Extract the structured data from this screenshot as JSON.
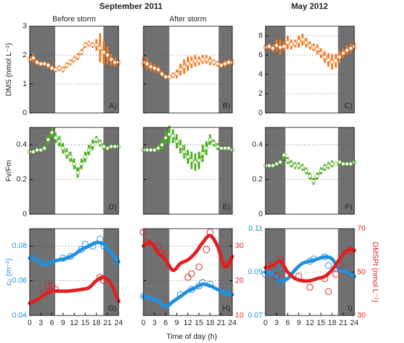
{
  "figure": {
    "headers": [
      "September 2011",
      "May 2012"
    ],
    "xlabel": "Time of day (h)"
  },
  "chart_data": [
    {
      "type": "line",
      "subtitle": "Before storm",
      "ylabel": "DMS (nmol L⁻¹)",
      "annotation": "A)",
      "color": "#f07820",
      "night": [
        [
          0,
          6.9
        ],
        [
          19.9,
          24
        ]
      ],
      "xlim": [
        0,
        24
      ],
      "ylim": [
        0,
        3
      ],
      "yticks": [
        0,
        1,
        2,
        3
      ],
      "ytick_labels": true,
      "x": [
        0,
        1,
        2,
        3,
        4,
        5,
        6,
        7,
        8,
        9,
        10,
        11,
        12,
        13,
        14,
        15,
        16,
        17,
        18,
        19,
        20,
        21,
        22,
        23,
        24
      ],
      "values": [
        1.85,
        1.9,
        1.75,
        1.7,
        1.7,
        1.65,
        1.55,
        1.5,
        1.55,
        1.5,
        1.65,
        1.75,
        1.85,
        1.95,
        2.1,
        2.35,
        2.4,
        2.35,
        2.35,
        2.25,
        2.1,
        2.0,
        1.85,
        1.75,
        1.75
      ],
      "errors": [
        0.1,
        0.15,
        0.1,
        0.08,
        0.08,
        0.1,
        0.1,
        0.1,
        0.1,
        0.1,
        0.1,
        0.1,
        0.1,
        0.12,
        0.1,
        0.1,
        0.1,
        0.1,
        0.2,
        0.5,
        0.4,
        0.3,
        0.2,
        0.15,
        0.1
      ]
    },
    {
      "type": "line",
      "subtitle": "After storm",
      "annotation": "B)",
      "color": "#f07820",
      "night": [
        [
          0,
          7
        ],
        [
          20.3,
          24
        ]
      ],
      "xlim": [
        0,
        24
      ],
      "ylim": [
        0,
        3
      ],
      "yticks": [
        0,
        1,
        2,
        3
      ],
      "ytick_labels": false,
      "x": [
        0,
        1,
        2,
        3,
        4,
        5,
        6,
        7,
        8,
        9,
        10,
        11,
        12,
        13,
        14,
        15,
        16,
        17,
        18,
        19,
        20,
        21,
        22,
        23,
        24
      ],
      "values": [
        1.75,
        1.7,
        1.6,
        1.55,
        1.5,
        1.35,
        1.25,
        1.25,
        1.3,
        1.35,
        1.5,
        1.6,
        1.7,
        1.75,
        1.8,
        1.8,
        1.85,
        1.85,
        1.8,
        1.75,
        1.7,
        1.65,
        1.7,
        1.75,
        1.75
      ],
      "errors": [
        0.15,
        0.2,
        0.15,
        0.15,
        0.12,
        0.1,
        0.08,
        0.08,
        0.1,
        0.15,
        0.2,
        0.25,
        0.25,
        0.2,
        0.2,
        0.15,
        0.15,
        0.15,
        0.15,
        0.1,
        0.1,
        0.1,
        0.12,
        0.1,
        0.1
      ]
    },
    {
      "type": "line",
      "annotation": "C)",
      "color": "#f07820",
      "night": [
        [
          0,
          5.4
        ],
        [
          19.6,
          24
        ]
      ],
      "xlim": [
        0,
        24
      ],
      "ylim": [
        0,
        9
      ],
      "yticks": [
        0,
        2,
        4,
        6,
        8
      ],
      "ytick_labels": true,
      "x": [
        0,
        1,
        2,
        3,
        4,
        5,
        6,
        7,
        8,
        9,
        10,
        11,
        12,
        13,
        14,
        15,
        16,
        17,
        18,
        19,
        20,
        21,
        22,
        23,
        24
      ],
      "values": [
        6.8,
        6.9,
        6.7,
        7.0,
        6.8,
        6.9,
        7.3,
        7.1,
        7.2,
        7.4,
        7.6,
        7.3,
        7.0,
        6.8,
        6.6,
        6.2,
        5.8,
        5.5,
        5.3,
        5.4,
        5.8,
        6.2,
        6.5,
        6.7,
        6.9
      ],
      "errors": [
        0.3,
        0.3,
        0.4,
        0.6,
        0.8,
        0.5,
        0.7,
        0.5,
        0.4,
        0.6,
        0.6,
        0.5,
        0.4,
        0.4,
        0.5,
        0.5,
        0.6,
        0.7,
        0.8,
        0.7,
        0.6,
        0.5,
        0.5,
        0.5,
        0.4
      ]
    },
    {
      "type": "line",
      "ylabel": "Fv/Fm",
      "annotation": "D)",
      "color": "#4caf1e",
      "night": [
        [
          0,
          6.9
        ],
        [
          19.9,
          24
        ]
      ],
      "xlim": [
        0,
        24
      ],
      "ylim": [
        0,
        0.5
      ],
      "yticks": [
        0,
        0.2,
        0.4
      ],
      "ytick_labels": true,
      "x": [
        0,
        1,
        2,
        3,
        4,
        5,
        6,
        7,
        8,
        9,
        10,
        11,
        12,
        13,
        14,
        15,
        16,
        17,
        18,
        19,
        20,
        21,
        22,
        23,
        24
      ],
      "values": [
        0.36,
        0.36,
        0.37,
        0.37,
        0.38,
        0.43,
        0.47,
        0.44,
        0.42,
        0.38,
        0.35,
        0.33,
        0.29,
        0.24,
        0.29,
        0.33,
        0.37,
        0.4,
        0.43,
        0.41,
        0.39,
        0.38,
        0.39,
        0.39,
        0.39
      ],
      "errors": [
        0.01,
        0.01,
        0.01,
        0.01,
        0.02,
        0.03,
        0.03,
        0.03,
        0.03,
        0.03,
        0.03,
        0.03,
        0.03,
        0.03,
        0.03,
        0.03,
        0.03,
        0.03,
        0.02,
        0.02,
        0.02,
        0.01,
        0.01,
        0.01,
        0.01
      ]
    },
    {
      "type": "line",
      "annotation": "E)",
      "color": "#4caf1e",
      "night": [
        [
          0,
          7
        ],
        [
          20.3,
          24
        ]
      ],
      "xlim": [
        0,
        24
      ],
      "ylim": [
        0,
        0.5
      ],
      "yticks": [
        0,
        0.2,
        0.4
      ],
      "ytick_labels": false,
      "x": [
        0,
        1,
        2,
        3,
        4,
        5,
        6,
        7,
        8,
        9,
        10,
        11,
        12,
        13,
        14,
        15,
        16,
        17,
        18,
        19,
        20,
        21,
        22,
        23,
        24
      ],
      "values": [
        0.37,
        0.37,
        0.37,
        0.37,
        0.38,
        0.4,
        0.44,
        0.46,
        0.45,
        0.42,
        0.39,
        0.36,
        0.33,
        0.31,
        0.3,
        0.31,
        0.35,
        0.38,
        0.43,
        0.41,
        0.39,
        0.38,
        0.38,
        0.38,
        0.37
      ],
      "errors": [
        0.01,
        0.01,
        0.01,
        0.01,
        0.02,
        0.03,
        0.04,
        0.05,
        0.04,
        0.04,
        0.04,
        0.04,
        0.04,
        0.05,
        0.05,
        0.05,
        0.05,
        0.04,
        0.03,
        0.02,
        0.02,
        0.01,
        0.01,
        0.01,
        0.01
      ]
    },
    {
      "type": "line",
      "annotation": "F)",
      "color": "#4caf1e",
      "night": [
        [
          0,
          5.4
        ],
        [
          19.6,
          24
        ]
      ],
      "xlim": [
        0,
        24
      ],
      "ylim": [
        0,
        0.5
      ],
      "yticks": [
        0,
        0.2,
        0.4
      ],
      "ytick_labels": true,
      "x": [
        0,
        1,
        2,
        3,
        4,
        5,
        6,
        7,
        8,
        9,
        10,
        11,
        12,
        13,
        14,
        15,
        16,
        17,
        18,
        19,
        20,
        21,
        22,
        23,
        24
      ],
      "values": [
        0.28,
        0.28,
        0.28,
        0.29,
        0.3,
        0.34,
        0.31,
        0.29,
        0.28,
        0.28,
        0.27,
        0.25,
        0.22,
        0.19,
        0.22,
        0.25,
        0.27,
        0.28,
        0.29,
        0.29,
        0.3,
        0.29,
        0.29,
        0.29,
        0.3
      ],
      "errors": [
        0.01,
        0.01,
        0.01,
        0.01,
        0.01,
        0.02,
        0.02,
        0.02,
        0.02,
        0.02,
        0.02,
        0.02,
        0.02,
        0.02,
        0.02,
        0.02,
        0.02,
        0.02,
        0.02,
        0.01,
        0.01,
        0.01,
        0.01,
        0.01,
        0.01
      ]
    },
    {
      "type": "dual",
      "ylabel": "cₚ (m⁻¹)",
      "annotation": "G)",
      "night": [
        [
          0,
          6.9
        ],
        [
          19.9,
          24
        ]
      ],
      "xlim": [
        0,
        24
      ],
      "ylim": [
        0.04,
        0.09
      ],
      "yticks": [
        0.04,
        0.06,
        0.08
      ],
      "ytick_labels": true,
      "y2lim": [
        10,
        35
      ],
      "xticks": [
        0,
        3,
        6,
        9,
        12,
        15,
        18,
        21,
        24
      ],
      "series": [
        {
          "color": "#2090e0",
          "axis": "y",
          "x": [
            0,
            2,
            4,
            6,
            8,
            10,
            12,
            14,
            16,
            18,
            20,
            22,
            24
          ],
          "values": [
            0.073,
            0.072,
            0.069,
            0.071,
            0.072,
            0.073,
            0.075,
            0.078,
            0.08,
            0.082,
            0.081,
            0.076,
            0.071
          ],
          "points_x": [
            2,
            4,
            9,
            11,
            14,
            15,
            17,
            19,
            20,
            23
          ],
          "points": [
            0.074,
            0.07,
            0.073,
            0.074,
            0.078,
            0.081,
            0.08,
            0.084,
            0.08,
            0.071
          ]
        },
        {
          "color": "#e02020",
          "axis": "y2",
          "x": [
            0,
            2,
            4,
            6,
            8,
            10,
            12,
            14,
            16,
            18,
            20,
            22,
            24
          ],
          "values": [
            13.5,
            14.5,
            16,
            17,
            17,
            17,
            17.2,
            17.5,
            18,
            20,
            21,
            19,
            14
          ],
          "points_x": [
            4,
            5,
            6,
            7,
            19,
            20
          ],
          "points": [
            16.5,
            18.5,
            18.5,
            17.5,
            21,
            20
          ]
        }
      ]
    },
    {
      "type": "dual",
      "annotation": "H)",
      "night": [
        [
          0,
          7
        ],
        [
          20.3,
          24
        ]
      ],
      "xlim": [
        0,
        24
      ],
      "ylim": [
        0.04,
        0.09
      ],
      "yticks": [
        0.04,
        0.06,
        0.08
      ],
      "ytick_labels": false,
      "y2lim": [
        10,
        35
      ],
      "y2ticks": [
        10,
        20,
        30
      ],
      "xticks": [
        0,
        3,
        6,
        9,
        12,
        15,
        18,
        21,
        24
      ],
      "series": [
        {
          "color": "#2090e0",
          "axis": "y",
          "x": [
            0,
            2,
            4,
            6,
            8,
            10,
            12,
            14,
            16,
            18,
            20,
            22,
            24
          ],
          "values": [
            0.051,
            0.05,
            0.048,
            0.045,
            0.048,
            0.051,
            0.054,
            0.056,
            0.058,
            0.057,
            0.055,
            0.053,
            0.052
          ],
          "points_x": [
            0,
            4,
            10,
            13,
            15,
            16,
            18,
            22,
            23
          ],
          "points": [
            0.051,
            0.049,
            0.052,
            0.055,
            0.057,
            0.059,
            0.058,
            0.053,
            0.053
          ]
        },
        {
          "color": "#e02020",
          "axis": "y2",
          "x": [
            0,
            2,
            4,
            6,
            8,
            10,
            12,
            14,
            16,
            18,
            20,
            22,
            24
          ],
          "values": [
            30,
            31,
            28,
            26,
            23,
            25,
            26,
            28,
            31,
            33,
            30,
            24,
            27
          ],
          "points_x": [
            0,
            1,
            4,
            5,
            6,
            12,
            13,
            15,
            17,
            18,
            23
          ],
          "points": [
            34,
            31,
            30,
            28,
            28,
            21,
            22,
            24,
            29,
            34,
            25
          ]
        }
      ]
    },
    {
      "type": "dual",
      "y2label": "DMSPt (nmol L⁻¹)",
      "annotation": "I)",
      "night": [
        [
          0,
          5.4
        ],
        [
          19.6,
          24
        ]
      ],
      "xlim": [
        0,
        24
      ],
      "ylim": [
        0.07,
        0.11
      ],
      "yticks": [
        0.07,
        0.09,
        0.11
      ],
      "ytick_labels": true,
      "y2lim": [
        30,
        70
      ],
      "y2ticks": [
        30,
        50,
        70
      ],
      "xticks": [
        0,
        3,
        6,
        9,
        12,
        15,
        18,
        21,
        24
      ],
      "series": [
        {
          "color": "#2090e0",
          "axis": "y",
          "x": [
            0,
            2,
            4,
            6,
            8,
            10,
            12,
            14,
            16,
            18,
            20,
            22,
            24
          ],
          "values": [
            0.09,
            0.089,
            0.086,
            0.087,
            0.091,
            0.094,
            0.095,
            0.096,
            0.097,
            0.096,
            0.091,
            0.09,
            0.088
          ],
          "points_x": [
            0,
            3,
            4,
            12,
            13,
            16,
            17,
            19
          ],
          "points": [
            0.089,
            0.092,
            0.085,
            0.095,
            0.096,
            0.097,
            0.093,
            0.092
          ]
        },
        {
          "color": "#e02020",
          "axis": "y2",
          "x": [
            0,
            2,
            4,
            6,
            8,
            10,
            12,
            14,
            16,
            18,
            20,
            22,
            24
          ],
          "values": [
            52,
            53,
            55,
            50,
            47,
            46,
            46,
            47,
            48,
            51,
            56,
            60,
            60
          ],
          "points_x": [
            1,
            3,
            4,
            9,
            12,
            16,
            17,
            19,
            20,
            23
          ],
          "points": [
            53,
            48,
            56,
            48,
            43,
            47,
            41,
            49,
            53,
            60
          ]
        }
      ]
    }
  ]
}
